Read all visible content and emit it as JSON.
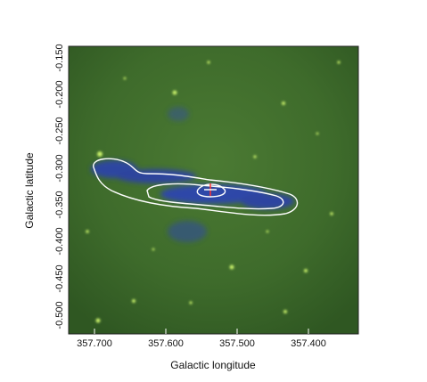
{
  "figure": {
    "xlabel": "Galactic longitude",
    "ylabel": "Galactic latitude",
    "x_ticks": [
      "357.700",
      "357.600",
      "357.500",
      "357.400"
    ],
    "y_ticks": [
      "-0.150",
      "-0.200",
      "-0.250",
      "-0.300",
      "-0.350",
      "-0.400",
      "-0.450",
      "-0.500"
    ]
  },
  "image": {
    "background_color": "#3d6a2a",
    "filament_color": "#2a3fb8",
    "contour_color": "#ffffff",
    "marker_colors": [
      "#ff3333",
      "#ffffff"
    ],
    "marker_icon": "cross-icon"
  }
}
